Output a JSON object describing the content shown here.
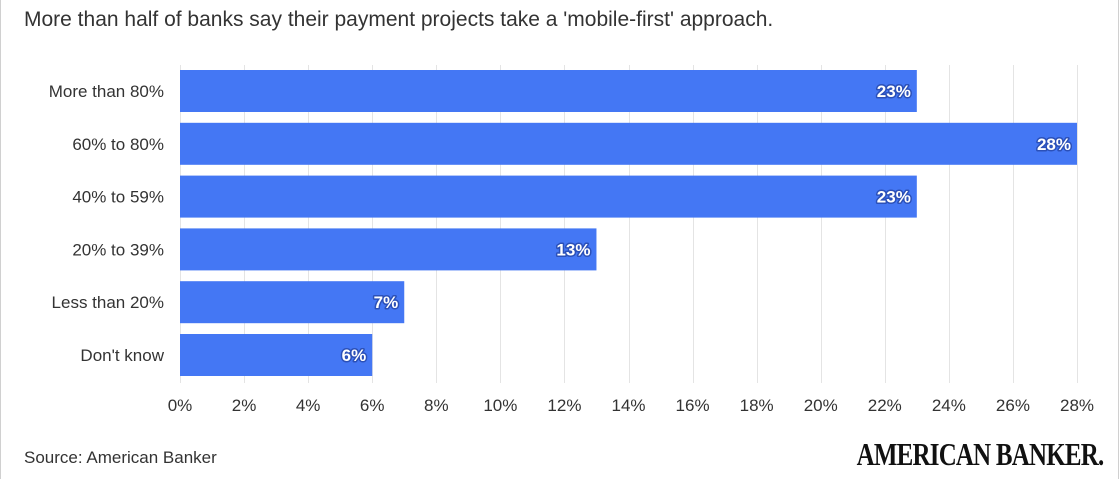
{
  "chart_data": {
    "type": "bar",
    "orientation": "horizontal",
    "title": "More than half of banks say their payment projects take a 'mobile-first' approach.",
    "categories": [
      "More than 80%",
      "60% to 80%",
      "40% to 59%",
      "20% to 39%",
      "Less than 20%",
      "Don't know"
    ],
    "values": [
      23,
      28,
      23,
      13,
      7,
      6
    ],
    "data_labels": [
      "23%",
      "28%",
      "23%",
      "13%",
      "7%",
      "6%"
    ],
    "xlim": [
      0,
      28
    ],
    "x_ticks": [
      0,
      2,
      4,
      6,
      8,
      10,
      12,
      14,
      16,
      18,
      20,
      22,
      24,
      26,
      28
    ],
    "x_tick_labels": [
      "0%",
      "2%",
      "4%",
      "6%",
      "8%",
      "10%",
      "12%",
      "14%",
      "16%",
      "18%",
      "20%",
      "22%",
      "24%",
      "26%",
      "28%"
    ],
    "grid": true,
    "bar_color": "#4477f4"
  },
  "footer": {
    "source": "Source: American Banker",
    "logo_text": "AMERICAN BANKER."
  }
}
